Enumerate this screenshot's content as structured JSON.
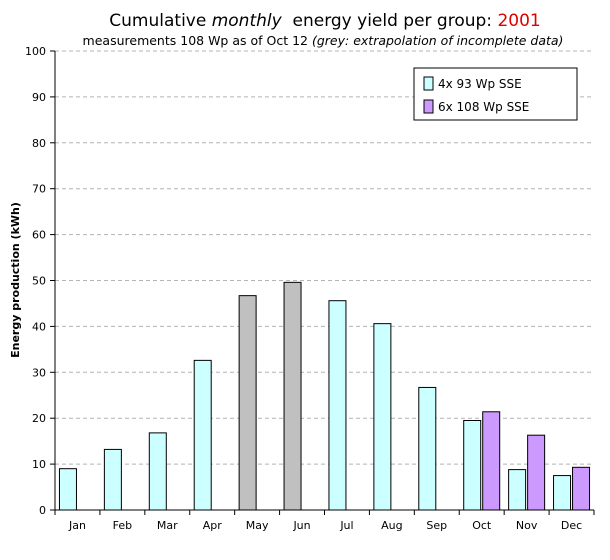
{
  "chart_data": {
    "type": "bar",
    "title_prefix": "Cumulative ",
    "title_italic": "monthly",
    "title_middle": "  energy yield per group: ",
    "title_year": "2001",
    "subtitle_main": "measurements 108 Wp as of Oct 12 ",
    "subtitle_italic": "(grey: extrapolation of incomplete data)",
    "xlabel": "",
    "ylabel": "Energy production (kWh)",
    "ylim": [
      0,
      100
    ],
    "yticks": [
      0,
      10,
      20,
      30,
      40,
      50,
      60,
      70,
      80,
      90,
      100
    ],
    "grid": true,
    "legend_position": "top-right",
    "categories": [
      "Jan",
      "Feb",
      "Mar",
      "Apr",
      "May",
      "Jun",
      "Jul",
      "Aug",
      "Sep",
      "Oct",
      "Nov",
      "Dec"
    ],
    "series": [
      {
        "name": "4x 93 Wp SSE",
        "color": "#ccffff",
        "values": [
          9,
          13.2,
          16.8,
          32.6,
          46.7,
          49.6,
          45.6,
          40.6,
          26.7,
          19.5,
          8.8,
          7.5
        ]
      },
      {
        "name": "6x 108 Wp SSE",
        "color": "#cc99ff",
        "values": [
          null,
          null,
          null,
          null,
          null,
          null,
          null,
          null,
          null,
          21.4,
          16.3,
          9.3
        ]
      }
    ],
    "extrapolated_color": "#c0c0c0",
    "extrapolated_categories": [
      "May",
      "Jun"
    ],
    "title_year_color": "#dd0000"
  }
}
